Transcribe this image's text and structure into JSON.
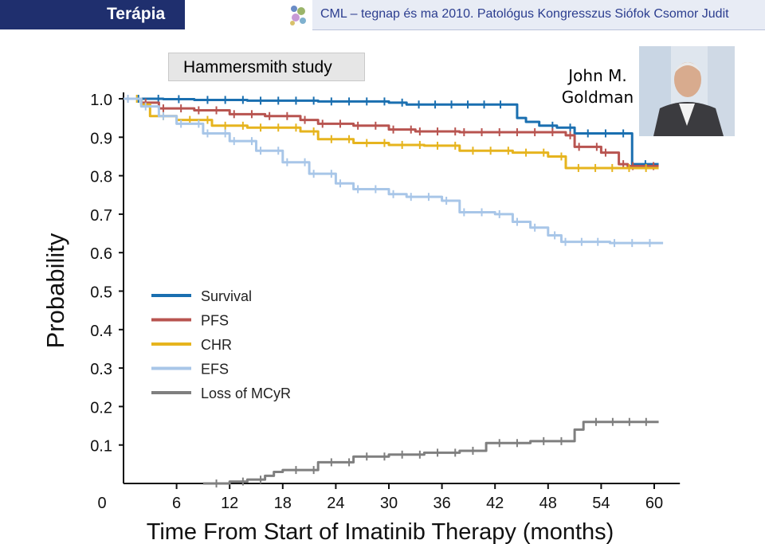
{
  "header": {
    "section": "Terápia",
    "title": "CML – tegnap és ma  2010. Patológus  Kongresszus  Siófok  Csomor Judit"
  },
  "study_label": "Hammersmith study",
  "presenter": {
    "line1": "John M.",
    "line2": "Goldman"
  },
  "colors": {
    "header_bar": "#1f2f6e",
    "header_right_bg": "#e8ecf5",
    "header_right_text": "#2b3d8f"
  },
  "chart_data": {
    "type": "line",
    "title": "",
    "xlabel": "Time From Start of Imatinib Therapy (months)",
    "ylabel": "Probability",
    "xlim": [
      0,
      62
    ],
    "ylim": [
      0,
      1.0
    ],
    "xticks": [
      0,
      6,
      12,
      18,
      24,
      30,
      36,
      42,
      48,
      54,
      60
    ],
    "yticks": [
      0.1,
      0.2,
      0.3,
      0.4,
      0.5,
      0.6,
      0.7,
      0.8,
      0.9,
      1.0
    ],
    "ytick_labels": [
      "0.1",
      "0.2",
      "0.3",
      "0.4",
      "0.5",
      "0.6",
      "0.7",
      "0.8",
      "0.9",
      "1.0"
    ],
    "x_zero_label": "0",
    "grid": false,
    "legend_position": "center-left",
    "series": [
      {
        "name": "Survival",
        "color": "#1a6fb0",
        "points": [
          [
            0,
            1.0
          ],
          [
            4.5,
            0.999
          ],
          [
            8,
            0.997
          ],
          [
            14,
            0.995
          ],
          [
            22,
            0.993
          ],
          [
            30,
            0.99
          ],
          [
            32,
            0.985
          ],
          [
            44,
            0.985
          ],
          [
            44.5,
            0.95
          ],
          [
            45.5,
            0.94
          ],
          [
            47,
            0.93
          ],
          [
            49,
            0.925
          ],
          [
            51,
            0.91
          ],
          [
            53,
            0.91
          ],
          [
            55,
            0.91
          ],
          [
            57,
            0.91
          ],
          [
            57.5,
            0.83
          ],
          [
            60.5,
            0.83
          ]
        ]
      },
      {
        "name": "PFS",
        "color": "#b85450",
        "points": [
          [
            0,
            1.0
          ],
          [
            2,
            0.99
          ],
          [
            4,
            0.975
          ],
          [
            8,
            0.97
          ],
          [
            12,
            0.96
          ],
          [
            16,
            0.955
          ],
          [
            20,
            0.945
          ],
          [
            22,
            0.935
          ],
          [
            26,
            0.93
          ],
          [
            30,
            0.92
          ],
          [
            33,
            0.915
          ],
          [
            38,
            0.913
          ],
          [
            46,
            0.913
          ],
          [
            50,
            0.905
          ],
          [
            51,
            0.875
          ],
          [
            54,
            0.86
          ],
          [
            56,
            0.83
          ],
          [
            57,
            0.825
          ],
          [
            60.5,
            0.825
          ]
        ]
      },
      {
        "name": "CHR",
        "color": "#e6b41e",
        "points": [
          [
            0,
            1.0
          ],
          [
            2,
            0.985
          ],
          [
            3,
            0.955
          ],
          [
            6,
            0.945
          ],
          [
            10,
            0.93
          ],
          [
            14,
            0.925
          ],
          [
            20,
            0.915
          ],
          [
            22,
            0.895
          ],
          [
            26,
            0.885
          ],
          [
            30,
            0.88
          ],
          [
            34,
            0.878
          ],
          [
            38,
            0.865
          ],
          [
            44,
            0.86
          ],
          [
            48,
            0.85
          ],
          [
            50,
            0.82
          ],
          [
            60.5,
            0.82
          ]
        ]
      },
      {
        "name": "EFS",
        "color": "#a8c6e8",
        "points": [
          [
            0,
            1.0
          ],
          [
            2,
            0.98
          ],
          [
            4,
            0.955
          ],
          [
            6,
            0.935
          ],
          [
            9,
            0.91
          ],
          [
            12,
            0.89
          ],
          [
            15,
            0.865
          ],
          [
            18,
            0.835
          ],
          [
            21,
            0.805
          ],
          [
            24,
            0.78
          ],
          [
            26,
            0.765
          ],
          [
            30,
            0.752
          ],
          [
            32,
            0.745
          ],
          [
            36,
            0.735
          ],
          [
            38,
            0.705
          ],
          [
            42,
            0.7
          ],
          [
            44,
            0.68
          ],
          [
            46,
            0.665
          ],
          [
            48,
            0.645
          ],
          [
            49.5,
            0.628
          ],
          [
            55,
            0.625
          ],
          [
            61,
            0.625
          ]
        ]
      },
      {
        "name": "Loss of MCyR",
        "color": "#7f7f7f",
        "points": [
          [
            9,
            0.0
          ],
          [
            12,
            0.005
          ],
          [
            14,
            0.01
          ],
          [
            16,
            0.02
          ],
          [
            17,
            0.03
          ],
          [
            18,
            0.035
          ],
          [
            22,
            0.055
          ],
          [
            26,
            0.07
          ],
          [
            30,
            0.075
          ],
          [
            34,
            0.08
          ],
          [
            38,
            0.085
          ],
          [
            41,
            0.105
          ],
          [
            46,
            0.11
          ],
          [
            51,
            0.14
          ],
          [
            52,
            0.16
          ],
          [
            60.5,
            0.16
          ]
        ]
      }
    ]
  }
}
